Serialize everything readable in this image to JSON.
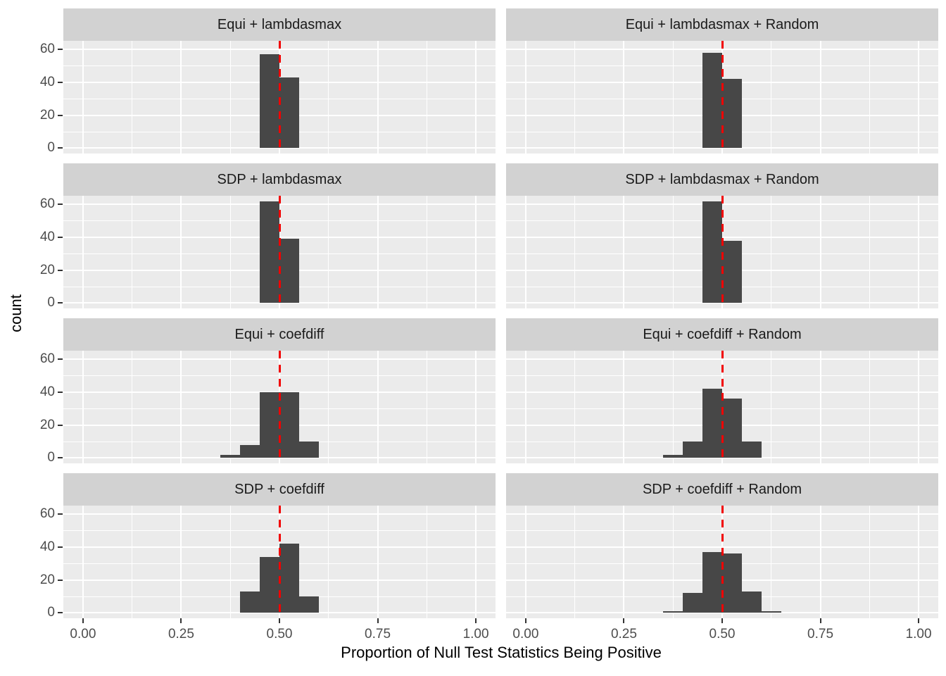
{
  "chart_data": {
    "type": "bar",
    "subtype": "faceted-histograms",
    "xlabel": "Proportion of Null Test Statistics Being Positive",
    "ylabel": "count",
    "x_tick_labels": [
      "0.00",
      "0.25",
      "0.50",
      "0.75",
      "1.00"
    ],
    "x_tick_values": [
      0,
      0.25,
      0.5,
      0.75,
      1.0
    ],
    "y_tick_labels": [
      "0",
      "20",
      "40",
      "60"
    ],
    "y_tick_values": [
      0,
      20,
      40,
      60
    ],
    "x_minor_gridlines": [
      0.125,
      0.375,
      0.625,
      0.875
    ],
    "y_minor_gridlines": [
      10,
      30,
      50
    ],
    "x_range": [
      -0.05,
      1.05
    ],
    "y_range": [
      -3.25,
      65.25
    ],
    "bin_width": 0.05,
    "grid": "on",
    "reference_line": {
      "x": 0.5,
      "style": "dashed",
      "color": "#f20000"
    },
    "facet_layout": {
      "rows": 4,
      "cols": 2
    },
    "panels": [
      {
        "title": "Equi + lambdasmax",
        "bins": [
          {
            "x0": 0.45,
            "count": 57
          },
          {
            "x0": 0.5,
            "count": 43
          }
        ]
      },
      {
        "title": "Equi + lambdasmax + Random",
        "bins": [
          {
            "x0": 0.45,
            "count": 58
          },
          {
            "x0": 0.5,
            "count": 42
          }
        ]
      },
      {
        "title": "SDP + lambdasmax",
        "bins": [
          {
            "x0": 0.45,
            "count": 62
          },
          {
            "x0": 0.5,
            "count": 39
          }
        ]
      },
      {
        "title": "SDP + lambdasmax + Random",
        "bins": [
          {
            "x0": 0.45,
            "count": 62
          },
          {
            "x0": 0.5,
            "count": 38
          }
        ]
      },
      {
        "title": "Equi + coefdiff",
        "bins": [
          {
            "x0": 0.35,
            "count": 2
          },
          {
            "x0": 0.4,
            "count": 8
          },
          {
            "x0": 0.45,
            "count": 40
          },
          {
            "x0": 0.5,
            "count": 40
          },
          {
            "x0": 0.55,
            "count": 10
          }
        ]
      },
      {
        "title": "Equi + coefdiff + Random",
        "bins": [
          {
            "x0": 0.35,
            "count": 2
          },
          {
            "x0": 0.4,
            "count": 10
          },
          {
            "x0": 0.45,
            "count": 42
          },
          {
            "x0": 0.5,
            "count": 36
          },
          {
            "x0": 0.55,
            "count": 10
          }
        ]
      },
      {
        "title": "SDP + coefdiff",
        "bins": [
          {
            "x0": 0.4,
            "count": 13
          },
          {
            "x0": 0.45,
            "count": 34
          },
          {
            "x0": 0.5,
            "count": 42
          },
          {
            "x0": 0.55,
            "count": 10
          }
        ]
      },
      {
        "title": "SDP + coefdiff + Random",
        "bins": [
          {
            "x0": 0.35,
            "count": 1
          },
          {
            "x0": 0.4,
            "count": 12
          },
          {
            "x0": 0.45,
            "count": 37
          },
          {
            "x0": 0.5,
            "count": 36
          },
          {
            "x0": 0.55,
            "count": 13
          },
          {
            "x0": 0.6,
            "count": 1
          }
        ]
      }
    ],
    "colors": {
      "bar_fill": "#474747",
      "panel_background": "#ebebeb",
      "strip_background": "#d2d2d2",
      "gridline": "#ffffff",
      "reference_line": "#f20000",
      "tick_text": "#4d4d4d",
      "axis_title_text": "#000000"
    }
  }
}
